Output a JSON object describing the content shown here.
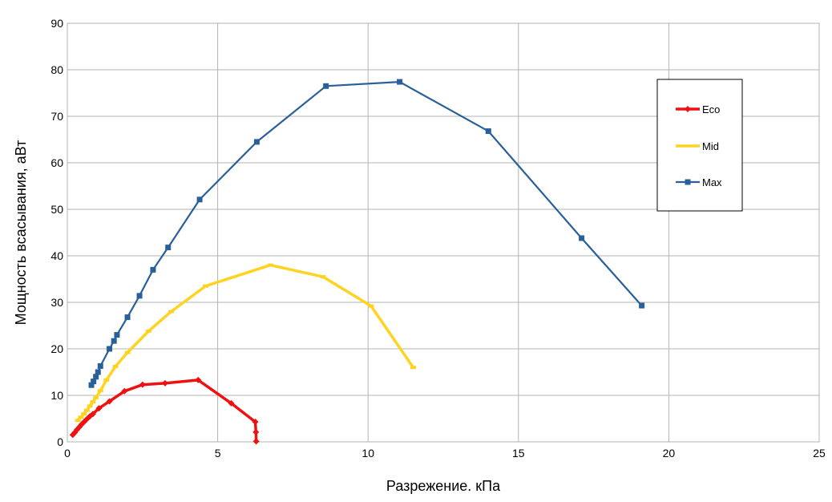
{
  "chart_data": {
    "type": "line",
    "title": "",
    "xlabel": "Разрежение. кПа",
    "ylabel": "Мощность всасывания, аВт",
    "xlim": [
      0,
      25
    ],
    "ylim": [
      0,
      90
    ],
    "xticks": [
      0,
      5,
      10,
      15,
      20,
      25
    ],
    "yticks": [
      0,
      10,
      20,
      30,
      40,
      50,
      60,
      70,
      80,
      90
    ],
    "grid": true,
    "legend_position": "right",
    "series": [
      {
        "name": "Eco",
        "color": "#ee1111",
        "marker": "diamond",
        "points": [
          [
            0.18,
            1.5
          ],
          [
            0.25,
            2.0
          ],
          [
            0.32,
            2.6
          ],
          [
            0.4,
            3.2
          ],
          [
            0.48,
            3.8
          ],
          [
            0.56,
            4.3
          ],
          [
            0.65,
            4.9
          ],
          [
            0.75,
            5.5
          ],
          [
            0.85,
            6.0
          ],
          [
            1.05,
            7.2
          ],
          [
            1.4,
            8.7
          ],
          [
            1.9,
            10.9
          ],
          [
            2.5,
            12.3
          ],
          [
            3.25,
            12.6
          ],
          [
            4.35,
            13.3
          ],
          [
            5.45,
            8.3
          ],
          [
            6.25,
            4.3
          ],
          [
            6.27,
            2.1
          ],
          [
            6.28,
            0.1
          ]
        ]
      },
      {
        "name": "Mid",
        "color": "#ffd320",
        "marker": "dash",
        "points": [
          [
            0.35,
            4.6
          ],
          [
            0.45,
            5.3
          ],
          [
            0.55,
            6.0
          ],
          [
            0.65,
            6.8
          ],
          [
            0.75,
            7.7
          ],
          [
            0.85,
            8.6
          ],
          [
            0.95,
            9.5
          ],
          [
            1.1,
            11.0
          ],
          [
            1.3,
            13.3
          ],
          [
            1.6,
            16.2
          ],
          [
            2.0,
            19.2
          ],
          [
            2.7,
            23.8
          ],
          [
            3.45,
            28.0
          ],
          [
            4.6,
            33.5
          ],
          [
            6.75,
            38.0
          ],
          [
            8.5,
            35.5
          ],
          [
            10.1,
            29.2
          ],
          [
            11.5,
            16.0
          ]
        ]
      },
      {
        "name": "Max",
        "color": "#2a6099",
        "marker": "square",
        "points": [
          [
            0.8,
            12.2
          ],
          [
            0.87,
            13.0
          ],
          [
            0.95,
            14.0
          ],
          [
            1.02,
            15.0
          ],
          [
            1.1,
            16.3
          ],
          [
            1.4,
            20.0
          ],
          [
            1.55,
            21.7
          ],
          [
            1.65,
            23.0
          ],
          [
            2.0,
            26.8
          ],
          [
            2.4,
            31.4
          ],
          [
            2.85,
            37.0
          ],
          [
            3.35,
            41.8
          ],
          [
            4.4,
            52.1
          ],
          [
            6.3,
            64.5
          ],
          [
            8.6,
            76.5
          ],
          [
            11.05,
            77.4
          ],
          [
            14.0,
            66.8
          ],
          [
            17.1,
            43.8
          ],
          [
            19.1,
            29.3
          ]
        ]
      }
    ]
  }
}
